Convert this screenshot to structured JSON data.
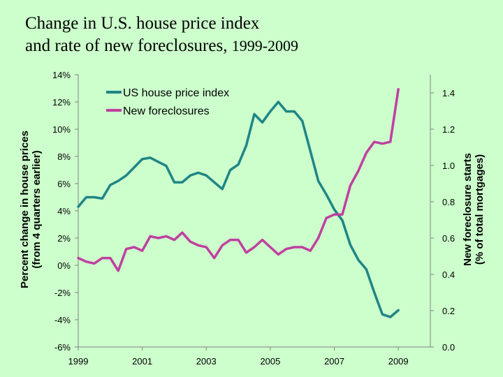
{
  "title": {
    "line1": "Change in U.S. house price index",
    "line2_main": "and rate of new foreclosures, ",
    "line2_years": "1999-2009"
  },
  "chart_data": {
    "type": "line",
    "title": "Change in U.S. house price index and rate of new foreclosures, 1999-2009",
    "x": [
      1999,
      1999.25,
      1999.5,
      1999.75,
      2000,
      2000.25,
      2000.5,
      2000.75,
      2001,
      2001.25,
      2001.5,
      2001.75,
      2002,
      2002.25,
      2002.5,
      2002.75,
      2003,
      2003.25,
      2003.5,
      2003.75,
      2004,
      2004.25,
      2004.5,
      2004.75,
      2005,
      2005.25,
      2005.5,
      2005.75,
      2006,
      2006.25,
      2006.5,
      2006.75,
      2007,
      2007.25,
      2007.5,
      2007.75,
      2008,
      2008.25,
      2008.5,
      2008.75,
      2009
    ],
    "xlabel": "",
    "xticks": [
      "1999",
      "2001",
      "2003",
      "2005",
      "2007",
      "2009"
    ],
    "xtick_values": [
      1999,
      2001,
      2003,
      2005,
      2007,
      2009
    ],
    "xlim": [
      1999,
      2010
    ],
    "legend_position": "top-center",
    "series": [
      {
        "name": "US house price index",
        "axis": "left",
        "color": "#1f8585",
        "values": [
          4.3,
          5.0,
          5.0,
          4.9,
          5.9,
          6.2,
          6.6,
          7.2,
          7.8,
          7.9,
          7.6,
          7.3,
          6.1,
          6.1,
          6.6,
          6.8,
          6.6,
          6.1,
          5.6,
          7.0,
          7.4,
          8.8,
          11.1,
          10.5,
          11.3,
          12.0,
          11.3,
          11.3,
          10.6,
          8.4,
          6.2,
          5.2,
          4.1,
          3.3,
          1.5,
          0.4,
          -0.3,
          -2.0,
          -3.6,
          -3.8,
          -3.3
        ]
      },
      {
        "name": "New foreclosures",
        "axis": "right",
        "color": "#c040a0",
        "values": [
          0.49,
          0.47,
          0.46,
          0.49,
          0.49,
          0.42,
          0.54,
          0.55,
          0.53,
          0.61,
          0.6,
          0.61,
          0.59,
          0.63,
          0.58,
          0.56,
          0.55,
          0.49,
          0.56,
          0.59,
          0.59,
          0.52,
          0.55,
          0.59,
          0.55,
          0.51,
          0.54,
          0.55,
          0.55,
          0.53,
          0.6,
          0.71,
          0.73,
          0.73,
          0.89,
          0.97,
          1.07,
          1.13,
          1.12,
          1.13,
          1.42
        ]
      }
    ],
    "y_left": {
      "label_line1": "Percent change in house prices",
      "label_line2": "(from 4 quarters earlier)",
      "ylim": [
        -6,
        14
      ],
      "ticks": [
        14,
        12,
        10,
        8,
        6,
        4,
        2,
        0,
        -2,
        -4,
        -6
      ],
      "tick_labels": [
        "14%",
        "12%",
        "10%",
        "8%",
        "6%",
        "4%",
        "2%",
        "0%",
        "-2%",
        "-4%",
        "-6%"
      ]
    },
    "y_right": {
      "label_line1": "New foreclosure starts",
      "label_line2": "(% of total mortgages)",
      "ylim": [
        0.0,
        1.5
      ],
      "ticks": [
        1.4,
        1.2,
        1.0,
        0.8,
        0.6,
        0.4,
        0.2,
        0.0
      ],
      "tick_labels": [
        "1.4",
        "1.2",
        "1.0",
        "0.8",
        "0.6",
        "0.4",
        "0.2",
        "0.0"
      ]
    },
    "grid": false
  }
}
